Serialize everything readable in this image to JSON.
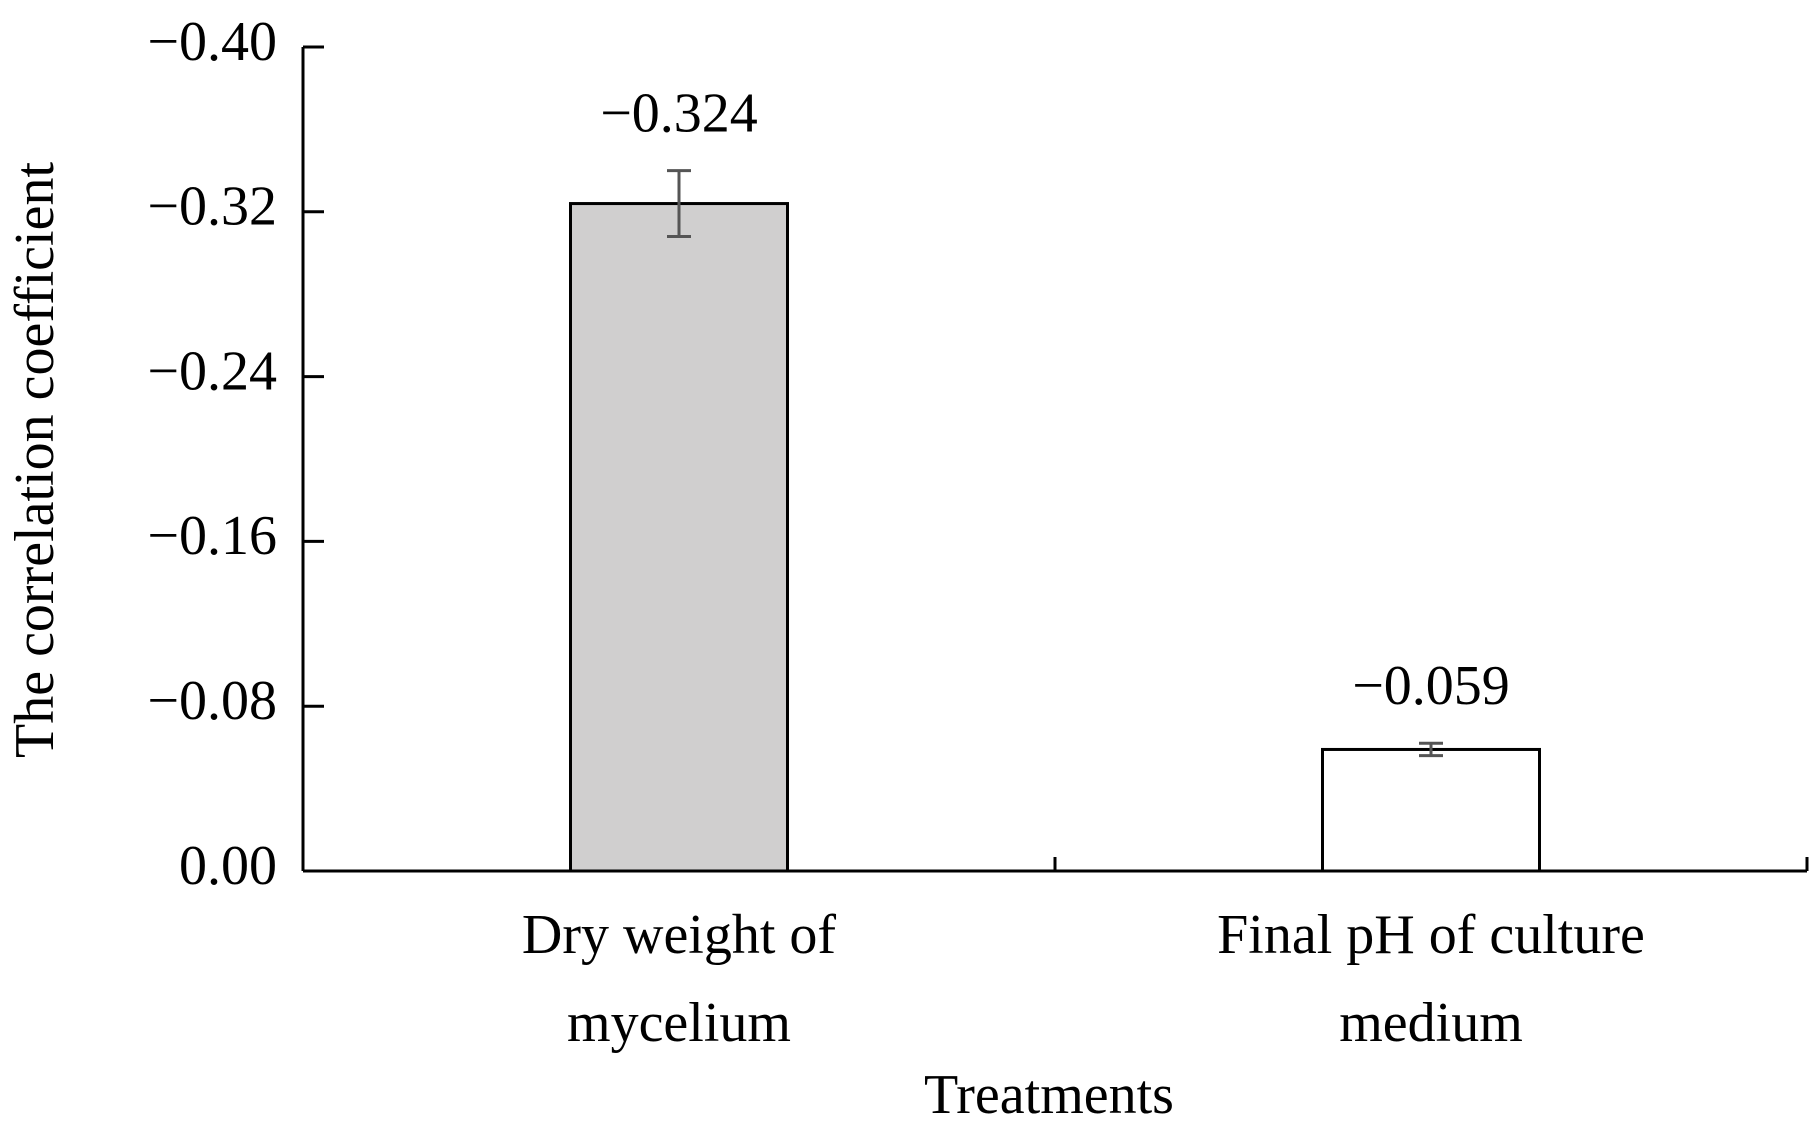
{
  "chart_data": {
    "type": "bar",
    "x_label": "Treatments",
    "y_label": "The correlation coefficient",
    "categories": [
      "Dry weight of mycelium",
      "Final pH of culture medium"
    ],
    "values": [
      -0.324,
      -0.059
    ],
    "value_labels": [
      "−0.324",
      "−0.059"
    ],
    "errors": [
      0.016,
      0.003
    ],
    "colors": [
      "#d0cfcf",
      "#ffffff"
    ],
    "ylim": [
      0,
      -0.4
    ],
    "yticks": [
      {
        "value": 0,
        "label": "0.00"
      },
      {
        "value": -0.08,
        "label": "−0.08"
      },
      {
        "value": -0.16,
        "label": "−0.16"
      },
      {
        "value": -0.24,
        "label": "−0.24"
      },
      {
        "value": -0.32,
        "label": "−0.32"
      },
      {
        "value": -0.4,
        "label": "−0.40"
      }
    ],
    "grid": false
  }
}
